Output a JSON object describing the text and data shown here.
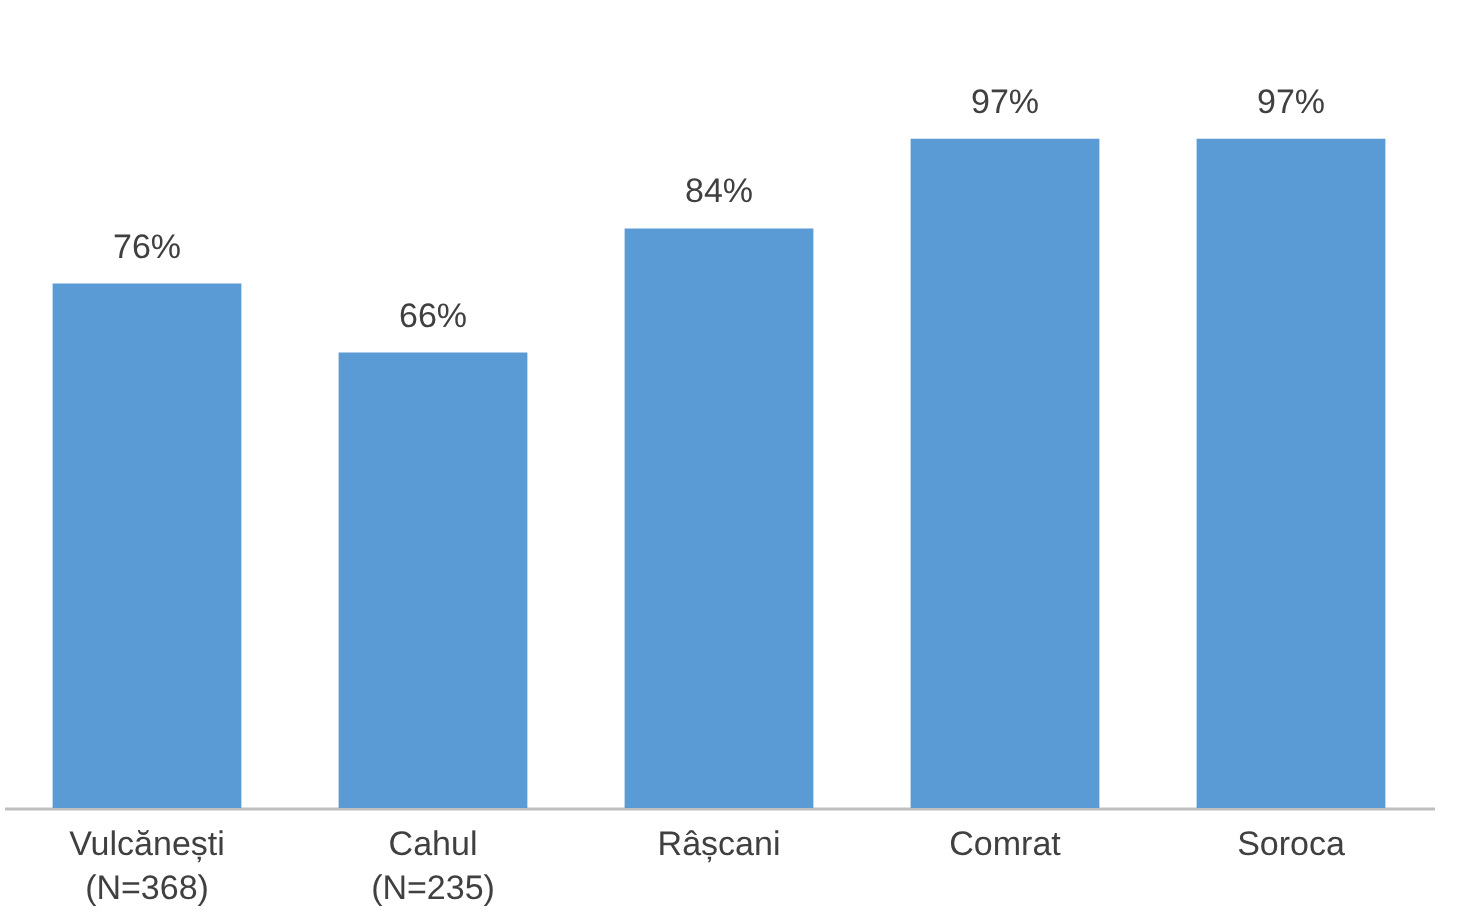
{
  "chart_data": {
    "type": "bar",
    "categories": [
      "Vulcănești\n(N=368)",
      "Cahul\n(N=235)",
      "Râșcani",
      "Comrat",
      "Soroca"
    ],
    "values": [
      76,
      66,
      84,
      97,
      97
    ],
    "value_labels": [
      "76%",
      "66%",
      "84%",
      "97%",
      "97%"
    ],
    "color": "#5b9bd5"
  }
}
